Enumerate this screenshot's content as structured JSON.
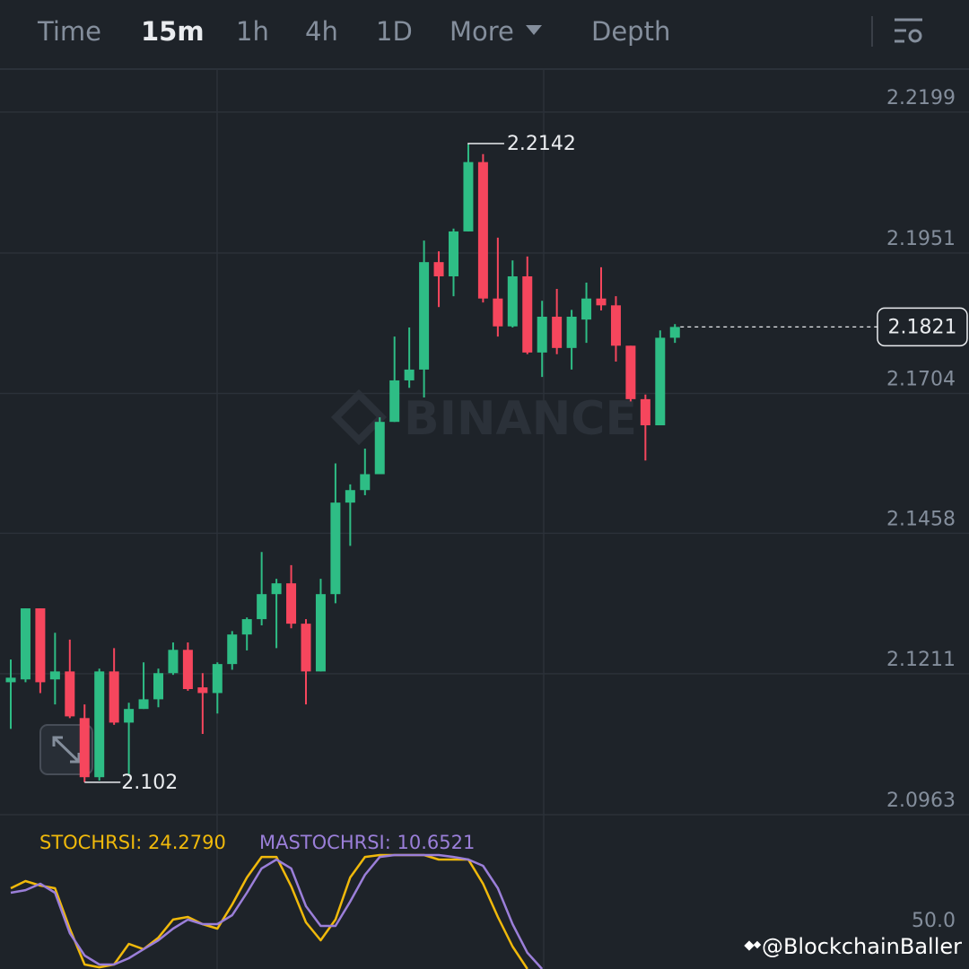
{
  "toolbar": {
    "tabs": [
      "Time",
      "15m",
      "1h",
      "4h",
      "1D",
      "More",
      "Depth"
    ],
    "active": 1
  },
  "watermark": "BINANCE",
  "credit": "@BlockchainBaller",
  "chart_data": [
    {
      "type": "candlestick",
      "up_color": "#2ebd85",
      "down_color": "#f6465d",
      "ylim": [
        2.0952,
        2.2273
      ],
      "yticks": [
        2.2199,
        2.1951,
        2.1704,
        2.1458,
        2.1211,
        2.0963
      ],
      "grid": true,
      "open": [
        2.1196,
        2.1201,
        2.1326,
        2.1201,
        2.1215,
        2.1133,
        2.1029,
        2.1215,
        2.1125,
        2.1149,
        2.1166,
        2.1212,
        2.1253,
        2.1187,
        2.1177,
        2.1228,
        2.128,
        2.1307,
        2.1351,
        2.137,
        2.1299,
        2.1215,
        2.1351,
        2.1512,
        2.1534,
        2.1562,
        2.1654,
        2.1727,
        2.1746,
        2.1935,
        2.191,
        2.1989,
        2.2111,
        2.1871,
        2.1822,
        2.191,
        2.1776,
        2.1839,
        2.1784,
        2.1834,
        2.1871,
        2.1859,
        2.1788,
        2.1694,
        2.1648,
        2.1802
      ],
      "high": [
        2.1236,
        2.1326,
        2.1326,
        2.1283,
        2.1271,
        2.1157,
        2.122,
        2.1256,
        2.116,
        2.1231,
        2.122,
        2.1266,
        2.1266,
        2.1212,
        2.1231,
        2.1286,
        2.131,
        2.1425,
        2.1378,
        2.1402,
        2.1307,
        2.1378,
        2.1581,
        2.1544,
        2.1607,
        2.1662,
        2.1804,
        2.182,
        2.1973,
        2.1954,
        2.1994,
        2.2142,
        2.2125,
        2.1978,
        2.1938,
        2.1945,
        2.1867,
        2.1888,
        2.1851,
        2.1899,
        2.1926,
        2.1875,
        2.1788,
        2.1702,
        2.1815,
        2.1826
      ],
      "low": [
        2.1114,
        2.1196,
        2.1177,
        2.1157,
        2.1133,
        2.102,
        2.1023,
        2.1121,
        2.1031,
        2.1149,
        2.1152,
        2.1209,
        2.1181,
        2.1105,
        2.1141,
        2.1218,
        2.1252,
        2.1296,
        2.1256,
        2.1291,
        2.1157,
        2.1215,
        2.1335,
        2.1436,
        2.1525,
        2.1562,
        2.1654,
        2.1714,
        2.1697,
        2.1856,
        2.1875,
        2.1989,
        2.1864,
        2.1804,
        2.182,
        2.1773,
        2.1733,
        2.1773,
        2.1746,
        2.1793,
        2.185,
        2.176,
        2.169,
        2.1586,
        2.1648,
        2.1793
      ],
      "close": [
        2.1204,
        2.1326,
        2.1196,
        2.1215,
        2.1136,
        2.1029,
        2.1215,
        2.1125,
        2.1149,
        2.1166,
        2.1212,
        2.1253,
        2.1184,
        2.1177,
        2.1228,
        2.128,
        2.1307,
        2.1351,
        2.137,
        2.1299,
        2.1215,
        2.1351,
        2.1512,
        2.1534,
        2.1562,
        2.1654,
        2.1727,
        2.1746,
        2.1935,
        2.191,
        2.1989,
        2.2111,
        2.1871,
        2.1822,
        2.191,
        2.1776,
        2.1839,
        2.1784,
        2.1839,
        2.1871,
        2.1859,
        2.1788,
        2.1694,
        2.1648,
        2.1802,
        2.1821
      ]
    },
    {
      "type": "line",
      "ylim": [
        14.2,
        118.9
      ],
      "yticks": [
        {
          "value": 50,
          "label": "50.0"
        }
      ],
      "series": [
        {
          "name": "STOCHRSI: 24.2790",
          "color": "#f0b90b",
          "values": [
            75.0,
            80.4,
            77.0,
            75.0,
            44.6,
            17.6,
            15.5,
            17.6,
            33.1,
            29.1,
            37.8,
            51.4,
            53.4,
            48.0,
            44.6,
            62.8,
            83.1,
            98.6,
            98.6,
            76.4,
            49.3,
            35.8,
            51.4,
            83.1,
            98.6,
            100,
            100,
            100,
            100,
            96.6,
            96.6,
            96.6,
            78.4,
            53.4,
            31.1,
            14.2,
            null,
            null,
            null,
            null,
            null,
            null,
            null,
            null,
            null,
            null
          ]
        },
        {
          "name": "MASTOCHRSI: 10.6521",
          "color": "#9b7fd9",
          "values": [
            71.6,
            73.6,
            78.4,
            71.6,
            41.2,
            24.3,
            17.6,
            17.6,
            22.3,
            29.1,
            35.8,
            44.6,
            51.4,
            48.0,
            48.0,
            54.7,
            71.6,
            89.9,
            96.6,
            89.9,
            61.5,
            46.6,
            46.6,
            64.9,
            85.1,
            98.6,
            100,
            100,
            100,
            100,
            98.6,
            96.6,
            91.9,
            75.0,
            48.0,
            26.4,
            14.2,
            null,
            null,
            null,
            null,
            null,
            null,
            null,
            null,
            null
          ]
        }
      ]
    }
  ]
}
